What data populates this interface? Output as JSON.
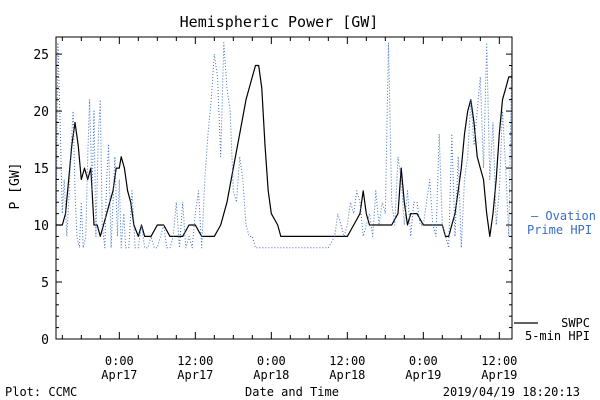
{
  "chart_data": {
    "type": "line",
    "title": "Hemispheric Power [GW]",
    "xlabel": "Date and Time",
    "ylabel": "P [GW]",
    "ylim": [
      0,
      26.5
    ],
    "xlim_hours": [
      -10,
      62
    ],
    "y_ticks": [
      0,
      5,
      10,
      15,
      20,
      25
    ],
    "x_ticks": [
      {
        "hour": 0,
        "line1": "0:00",
        "line2": "Apr17"
      },
      {
        "hour": 12,
        "line1": "12:00",
        "line2": "Apr17"
      },
      {
        "hour": 24,
        "line1": "0:00",
        "line2": "Apr18"
      },
      {
        "hour": 36,
        "line1": "12:00",
        "line2": "Apr18"
      },
      {
        "hour": 48,
        "line1": "0:00",
        "line2": "Apr19"
      },
      {
        "hour": 60,
        "line1": "12:00",
        "line2": "Apr19"
      }
    ],
    "series": [
      {
        "name": "SWPC 5-min HPI",
        "legend_line1": "SWPC",
        "legend_line2": "5-min HPI",
        "color": "#000000",
        "style": "solid",
        "points": [
          [
            -10,
            10
          ],
          [
            -9,
            10
          ],
          [
            -8.5,
            11
          ],
          [
            -8,
            14
          ],
          [
            -7.5,
            17
          ],
          [
            -7,
            19
          ],
          [
            -6.5,
            17
          ],
          [
            -6,
            14
          ],
          [
            -5.5,
            15
          ],
          [
            -5,
            14
          ],
          [
            -4.5,
            15
          ],
          [
            -4,
            10
          ],
          [
            -3.5,
            10
          ],
          [
            -3,
            9
          ],
          [
            -2.5,
            10
          ],
          [
            -2,
            11
          ],
          [
            -1.5,
            12
          ],
          [
            -1,
            13
          ],
          [
            -0.5,
            15
          ],
          [
            0,
            15
          ],
          [
            0.3,
            16
          ],
          [
            0.8,
            15
          ],
          [
            1.3,
            13
          ],
          [
            1.8,
            12
          ],
          [
            2.3,
            10
          ],
          [
            3,
            9
          ],
          [
            3.5,
            10
          ],
          [
            4,
            9
          ],
          [
            5,
            9
          ],
          [
            6,
            10
          ],
          [
            7,
            10
          ],
          [
            8,
            9
          ],
          [
            9,
            9
          ],
          [
            10,
            9
          ],
          [
            11,
            10
          ],
          [
            12,
            10
          ],
          [
            13,
            9
          ],
          [
            14,
            9
          ],
          [
            15,
            9
          ],
          [
            16,
            10
          ],
          [
            17,
            12
          ],
          [
            18,
            15
          ],
          [
            19,
            18
          ],
          [
            20,
            21
          ],
          [
            21,
            23
          ],
          [
            21.5,
            24
          ],
          [
            22,
            24
          ],
          [
            22.5,
            22
          ],
          [
            23,
            17
          ],
          [
            23.5,
            13
          ],
          [
            24,
            11
          ],
          [
            25,
            10
          ],
          [
            25.5,
            9
          ],
          [
            27,
            9
          ],
          [
            30,
            9
          ],
          [
            33,
            9
          ],
          [
            34,
            9
          ],
          [
            35,
            9
          ],
          [
            36,
            9
          ],
          [
            37,
            10
          ],
          [
            38,
            11
          ],
          [
            38.5,
            13
          ],
          [
            39,
            11
          ],
          [
            39.5,
            10
          ],
          [
            40,
            10
          ],
          [
            41,
            10
          ],
          [
            42,
            10
          ],
          [
            43,
            10
          ],
          [
            44,
            11
          ],
          [
            44.5,
            15
          ],
          [
            45,
            12
          ],
          [
            45.5,
            10
          ],
          [
            46,
            11
          ],
          [
            47,
            11
          ],
          [
            48,
            10
          ],
          [
            49,
            10
          ],
          [
            50,
            10
          ],
          [
            51,
            10
          ],
          [
            51.5,
            9
          ],
          [
            52,
            9
          ],
          [
            52.5,
            10
          ],
          [
            53,
            11
          ],
          [
            53.5,
            13
          ],
          [
            54,
            15
          ],
          [
            54.5,
            18
          ],
          [
            55,
            20
          ],
          [
            55.5,
            21
          ],
          [
            56,
            19
          ],
          [
            56.5,
            16
          ],
          [
            57,
            15
          ],
          [
            57.5,
            14
          ],
          [
            58,
            11
          ],
          [
            58.5,
            9
          ],
          [
            59,
            11
          ],
          [
            59.5,
            14
          ],
          [
            60,
            18
          ],
          [
            60.5,
            21
          ],
          [
            61,
            22
          ],
          [
            61.5,
            23
          ],
          [
            62,
            23
          ],
          [
            62.5,
            22
          ],
          [
            63,
            20
          ],
          [
            63.5,
            16
          ],
          [
            64,
            14
          ],
          [
            64.5,
            12
          ],
          [
            65,
            11
          ],
          [
            65.5,
            12
          ],
          [
            66,
            14
          ]
        ]
      },
      {
        "name": "Ovation Prime HPI",
        "legend_line1": "— Ovation",
        "legend_line2": "Prime HPI",
        "color": "#3a6fc4",
        "style": "dotted",
        "points": [
          [
            -10,
            9
          ],
          [
            -9.7,
            26
          ],
          [
            -9.3,
            18
          ],
          [
            -9,
            11
          ],
          [
            -8.7,
            14
          ],
          [
            -8.3,
            9
          ],
          [
            -8,
            12
          ],
          [
            -7.7,
            16
          ],
          [
            -7.3,
            20
          ],
          [
            -7,
            13
          ],
          [
            -6.7,
            9
          ],
          [
            -6.3,
            8
          ],
          [
            -6,
            12
          ],
          [
            -5.7,
            8
          ],
          [
            -5.3,
            9
          ],
          [
            -5,
            16
          ],
          [
            -4.7,
            21
          ],
          [
            -4.3,
            13
          ],
          [
            -4,
            20
          ],
          [
            -3.7,
            9
          ],
          [
            -3.3,
            18
          ],
          [
            -3,
            21
          ],
          [
            -2.7,
            10
          ],
          [
            -2.3,
            8
          ],
          [
            -2,
            14
          ],
          [
            -1.7,
            17
          ],
          [
            -1.3,
            8
          ],
          [
            -1,
            12
          ],
          [
            -0.7,
            16
          ],
          [
            -0.3,
            9
          ],
          [
            0,
            14
          ],
          [
            0.3,
            8
          ],
          [
            0.7,
            11
          ],
          [
            1,
            8
          ],
          [
            1.5,
            8
          ],
          [
            2,
            13
          ],
          [
            2.5,
            8
          ],
          [
            3,
            8
          ],
          [
            3.5,
            10
          ],
          [
            4,
            8
          ],
          [
            4.5,
            8
          ],
          [
            5,
            9
          ],
          [
            5.5,
            8
          ],
          [
            6,
            8
          ],
          [
            6.5,
            9
          ],
          [
            7,
            10
          ],
          [
            7.5,
            8
          ],
          [
            8,
            8
          ],
          [
            8.5,
            9
          ],
          [
            9,
            12
          ],
          [
            9.5,
            8
          ],
          [
            10,
            12
          ],
          [
            10.5,
            8
          ],
          [
            11,
            9
          ],
          [
            11.5,
            8
          ],
          [
            12,
            11
          ],
          [
            12.5,
            13
          ],
          [
            13,
            8
          ],
          [
            13.5,
            14
          ],
          [
            14,
            18
          ],
          [
            14.5,
            21
          ],
          [
            15,
            25
          ],
          [
            15.5,
            23
          ],
          [
            16,
            16
          ],
          [
            16.5,
            26
          ],
          [
            17,
            22
          ],
          [
            17.5,
            20
          ],
          [
            18,
            13
          ],
          [
            18.5,
            12
          ],
          [
            19,
            16
          ],
          [
            19.5,
            14
          ],
          [
            20,
            10
          ],
          [
            20.5,
            9
          ],
          [
            21,
            9
          ],
          [
            21.5,
            8
          ],
          [
            22,
            8
          ],
          [
            23,
            8
          ],
          [
            24,
            8
          ],
          [
            25,
            8
          ],
          [
            26,
            8
          ],
          [
            27,
            8
          ],
          [
            28,
            8
          ],
          [
            29,
            8
          ],
          [
            30,
            8
          ],
          [
            31,
            8
          ],
          [
            32,
            8
          ],
          [
            33,
            8
          ],
          [
            34,
            9
          ],
          [
            34.5,
            11
          ],
          [
            35,
            10
          ],
          [
            35.5,
            9
          ],
          [
            36,
            10
          ],
          [
            36.5,
            12
          ],
          [
            37,
            11
          ],
          [
            37.5,
            13
          ],
          [
            38,
            12
          ],
          [
            38.5,
            9
          ],
          [
            39,
            10
          ],
          [
            39.5,
            11
          ],
          [
            40,
            9
          ],
          [
            40.5,
            13
          ],
          [
            41,
            10
          ],
          [
            41.5,
            12
          ],
          [
            42,
            11
          ],
          [
            42.5,
            26
          ],
          [
            43,
            12
          ],
          [
            43.5,
            10
          ],
          [
            44,
            16
          ],
          [
            44.5,
            14
          ],
          [
            45,
            10
          ],
          [
            45.5,
            13
          ],
          [
            46,
            9
          ],
          [
            46.5,
            12
          ],
          [
            47,
            12
          ],
          [
            47.5,
            10
          ],
          [
            48,
            10
          ],
          [
            48.5,
            12
          ],
          [
            49,
            14
          ],
          [
            49.5,
            10
          ],
          [
            50,
            9
          ],
          [
            50.5,
            18
          ],
          [
            51,
            10
          ],
          [
            51.5,
            9
          ],
          [
            52,
            8
          ],
          [
            52.5,
            18
          ],
          [
            53,
            9
          ],
          [
            53.5,
            16
          ],
          [
            54,
            8
          ],
          [
            54.5,
            14
          ],
          [
            55,
            16
          ],
          [
            55.5,
            21
          ],
          [
            56,
            17
          ],
          [
            56.5,
            20
          ],
          [
            57,
            23
          ],
          [
            57.5,
            15
          ],
          [
            58,
            26
          ],
          [
            58.5,
            14
          ],
          [
            59,
            19
          ],
          [
            59.5,
            10
          ],
          [
            60,
            13
          ],
          [
            60.5,
            20
          ],
          [
            61,
            15
          ],
          [
            61.5,
            9
          ],
          [
            62,
            26
          ],
          [
            62.5,
            22
          ],
          [
            63,
            15
          ],
          [
            63.5,
            9
          ],
          [
            64,
            8
          ],
          [
            64.5,
            26
          ],
          [
            65,
            18
          ],
          [
            65.5,
            9
          ],
          [
            66,
            12
          ]
        ]
      }
    ]
  },
  "footer": {
    "plot_credit": "Plot: CCMC",
    "timestamp": "2019/04/19 18:20:13"
  }
}
